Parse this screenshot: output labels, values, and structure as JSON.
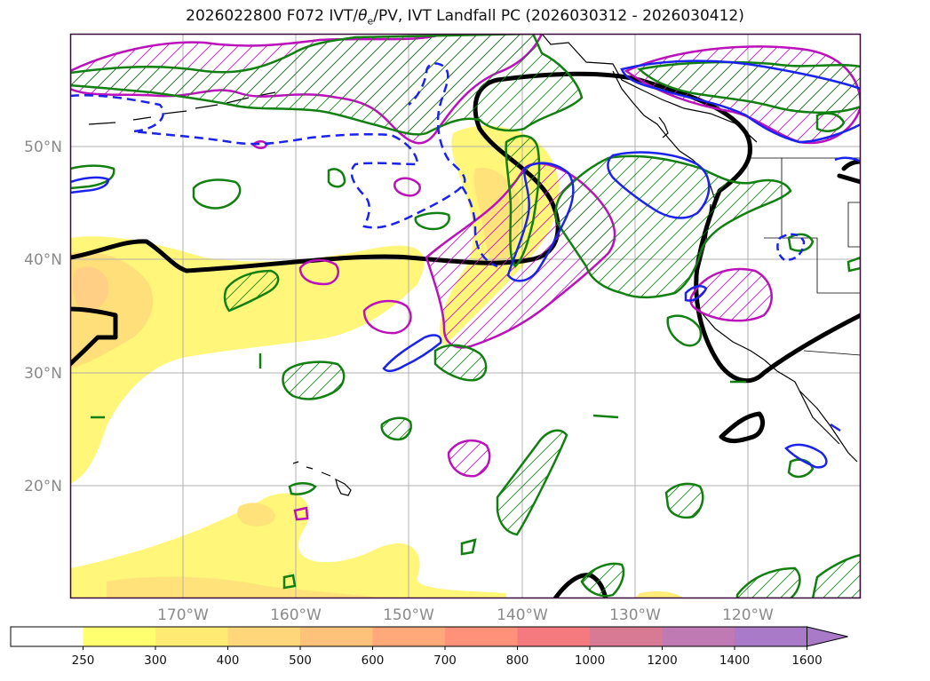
{
  "title": {
    "prefix": "2026022800 F072 IVT/",
    "theta": "θ",
    "theta_sub": "e",
    "suffix": "/PV, IVT Landfall PC (2026030312 - 2026030412)"
  },
  "map": {
    "projection": "equirectangular",
    "lon_range": [
      -180,
      -110
    ],
    "lat_range": [
      10,
      60
    ],
    "lat_gridlines": [
      {
        "value": 20,
        "label": "20°N"
      },
      {
        "value": 30,
        "label": "30°N"
      },
      {
        "value": 40,
        "label": "40°N"
      },
      {
        "value": 50,
        "label": "50°N"
      }
    ],
    "lon_gridlines": [
      {
        "value": -170,
        "label": "170°W"
      },
      {
        "value": -160,
        "label": "160°W"
      },
      {
        "value": -150,
        "label": "150°W"
      },
      {
        "value": -140,
        "label": "140°W"
      },
      {
        "value": -130,
        "label": "130°W"
      },
      {
        "value": -120,
        "label": "120°W"
      }
    ],
    "layers": {
      "ivt_fill": "IVT shading",
      "black_contour": "thick black contour",
      "green_contour": "green hatched contours",
      "magenta_contour": "magenta hatched contours",
      "blue_contour": "blue contours (solid and dashed)"
    },
    "colors": {
      "grid": "#b0b0b0",
      "frame": "#3a0a3a",
      "green": "#118011",
      "magenta": "#bb11bb",
      "blue": "#1a22ee",
      "black": "#000000",
      "coast": "#000000"
    }
  },
  "colorbar": {
    "levels": [
      "250",
      "300",
      "400",
      "500",
      "600",
      "700",
      "800",
      "1000",
      "1200",
      "1400",
      "1600"
    ],
    "colors": [
      "#ffffff",
      "#ffff70",
      "#ffeb73",
      "#ffd679",
      "#ffc27a",
      "#ffa97a",
      "#ff907a",
      "#f47a80",
      "#d97a95",
      "#c07ab3",
      "#a87ac8"
    ],
    "extend": "max"
  }
}
